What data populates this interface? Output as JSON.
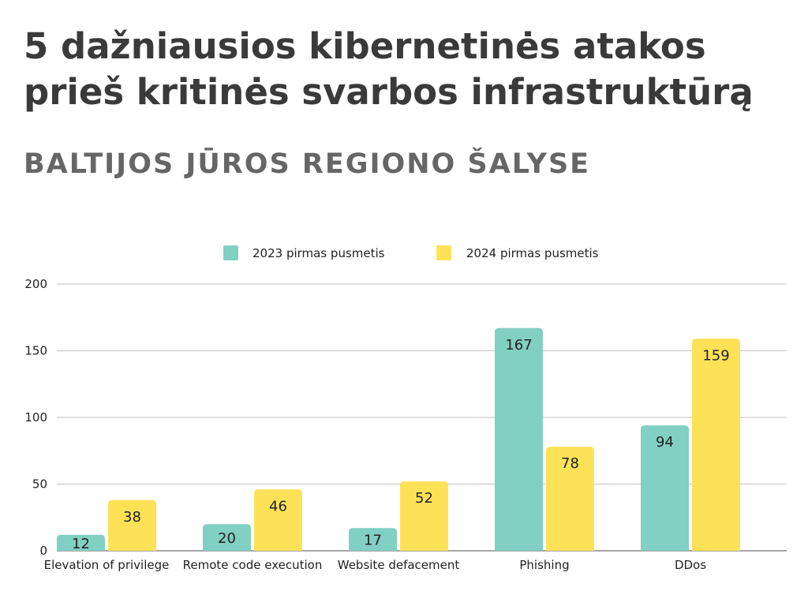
{
  "title_line1": "5 dažniausios kibernetinės atakos",
  "title_line2": "prieš kritinės svarbos infrastruktūrą",
  "subtitle": "BALTIJOS JŪROS REGIONO ŠALYSE",
  "chart_data": {
    "type": "bar",
    "categories": [
      "Elevation of privilege",
      "Remote code execution",
      "Website defacement",
      "Phishing",
      "DDos"
    ],
    "series": [
      {
        "name": "2023 pirmas pusmetis",
        "color": "#82cfc4",
        "values": [
          12,
          20,
          17,
          167,
          94
        ]
      },
      {
        "name": "2024 pirmas pusmetis",
        "color": "#fde257",
        "values": [
          38,
          46,
          52,
          78,
          159
        ]
      }
    ],
    "ylim": [
      0,
      200
    ],
    "yticks": [
      0,
      50,
      100,
      150,
      200
    ],
    "grid": true,
    "legend_position": "top-center",
    "data_labels": true
  }
}
